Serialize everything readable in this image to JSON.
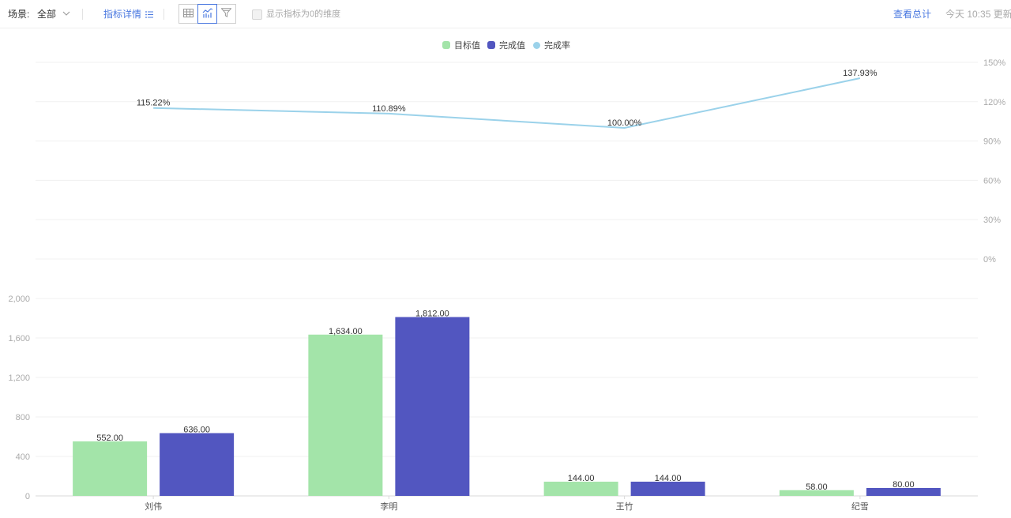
{
  "toolbar": {
    "scene_label": "场景:",
    "scene_value": "全部",
    "metric_detail_label": "指标详情",
    "view_buttons": [
      {
        "name": "table-view",
        "icon": "table-icon",
        "active": false
      },
      {
        "name": "chart-view",
        "icon": "combo-chart-icon",
        "active": true
      },
      {
        "name": "funnel-view",
        "icon": "funnel-icon",
        "active": false
      }
    ],
    "show_zero_label": "显示指标为0的维度",
    "show_zero_checked": false,
    "view_total_label": "查看总计",
    "update_text": "今天 10:35 更新."
  },
  "colors": {
    "target": "#a3e4a9",
    "actual": "#5256c0",
    "rate": "#9bd2ea",
    "link": "#4a78e0"
  },
  "chart_data": {
    "type": "bar",
    "categories": [
      "刘伟",
      "李明",
      "王竹",
      "纪雪"
    ],
    "series": [
      {
        "name": "目标值",
        "type": "bar",
        "values": [
          552,
          1634,
          144,
          58
        ],
        "labels": [
          "552.00",
          "1,634.00",
          "144.00",
          "58.00"
        ]
      },
      {
        "name": "完成值",
        "type": "bar",
        "values": [
          636,
          1812,
          144,
          80
        ],
        "labels": [
          "636.00",
          "1,812.00",
          "144.00",
          "80.00"
        ]
      },
      {
        "name": "完成率",
        "type": "line",
        "axis": "top",
        "values": [
          115.22,
          110.89,
          100.0,
          137.93
        ],
        "labels": [
          "115.22%",
          "110.89%",
          "100.00%",
          "137.93%"
        ]
      }
    ],
    "y_bar": {
      "ticks": [
        "0",
        "400",
        "800",
        "1,200",
        "1,600",
        "2,000"
      ],
      "range": [
        0,
        2000
      ]
    },
    "y_line": {
      "ticks": [
        "0%",
        "30%",
        "60%",
        "90%",
        "120%",
        "150%"
      ],
      "range": [
        0,
        150
      ]
    },
    "legend_position": "top-center",
    "grid": true
  }
}
